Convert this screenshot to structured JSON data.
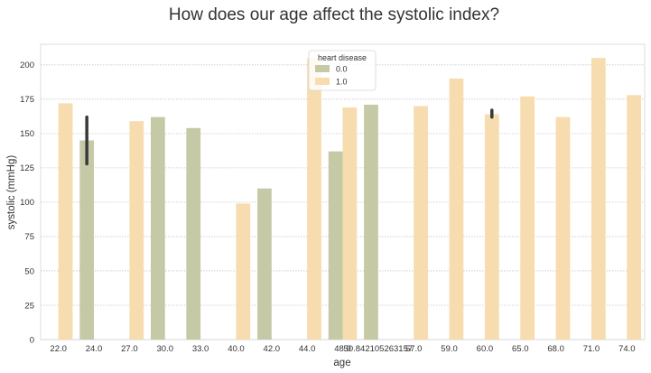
{
  "chart_data": {
    "type": "bar",
    "title": "How does our age affect the systolic index?",
    "xlabel": "age",
    "ylabel": "systolic (mmHg)",
    "ylim": [
      0,
      215
    ],
    "yticks": [
      0,
      25,
      50,
      75,
      100,
      125,
      150,
      175,
      200
    ],
    "grid": "horizontal dotted",
    "categories": [
      "22.0",
      "24.0",
      "27.0",
      "30.0",
      "33.0",
      "40.0",
      "42.0",
      "44.0",
      "48.0",
      "50.842105263157",
      "57.0",
      "59.0",
      "60.0",
      "65.0",
      "68.0",
      "71.0",
      "74.0"
    ],
    "series": [
      {
        "name": "0.0",
        "color": "#c5c9a6",
        "values": [
          null,
          145,
          null,
          162,
          154,
          null,
          110,
          null,
          137,
          171,
          null,
          null,
          null,
          null,
          null,
          null,
          null
        ],
        "error": [
          null,
          [
            128,
            162
          ],
          null,
          null,
          null,
          null,
          null,
          null,
          null,
          null,
          null,
          null,
          null,
          null,
          null,
          null,
          null
        ]
      },
      {
        "name": "1.0",
        "color": "#f6dcae",
        "values": [
          172,
          null,
          159,
          null,
          null,
          99,
          null,
          205,
          169,
          null,
          170,
          190,
          164,
          177,
          162,
          205,
          178
        ],
        "error": [
          null,
          null,
          null,
          null,
          null,
          null,
          null,
          null,
          null,
          null,
          null,
          null,
          [
            162,
            167
          ],
          null,
          null,
          null,
          null
        ]
      }
    ],
    "legend": {
      "title": "heart disease",
      "position": "upper-center"
    },
    "errorbar_color": "#3a3a3a"
  }
}
